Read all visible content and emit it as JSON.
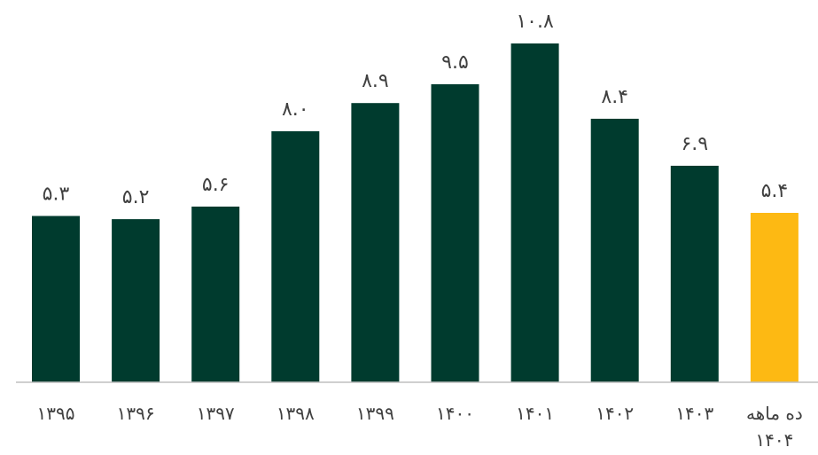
{
  "chart_data": {
    "type": "bar",
    "title": "",
    "xlabel": "",
    "ylabel": "",
    "categories": [
      "۱۳۹۵",
      "۱۳۹۶",
      "۱۳۹۷",
      "۱۳۹۸",
      "۱۳۹۹",
      "۱۴۰۰",
      "۱۴۰۱",
      "۱۴۰۲",
      "۱۴۰۳",
      "ده ماهه ۱۴۰۴"
    ],
    "values": [
      5.3,
      5.2,
      5.6,
      8.0,
      8.9,
      9.5,
      10.8,
      8.4,
      6.9,
      5.4
    ],
    "value_labels": [
      "۵.۳",
      "۵.۲",
      "۵.۶",
      "۸.۰",
      "۸.۹",
      "۹.۵",
      "۱۰.۸",
      "۸.۴",
      "۶.۹",
      "۵.۴"
    ],
    "ylim": [
      0,
      10.8
    ],
    "grid": false,
    "legend": "none",
    "colors": {
      "bar": "#003B2E",
      "highlight_bar": "#FDB913",
      "axis": "#BFBFBF",
      "text": "#404040"
    },
    "highlight_index": 9
  }
}
